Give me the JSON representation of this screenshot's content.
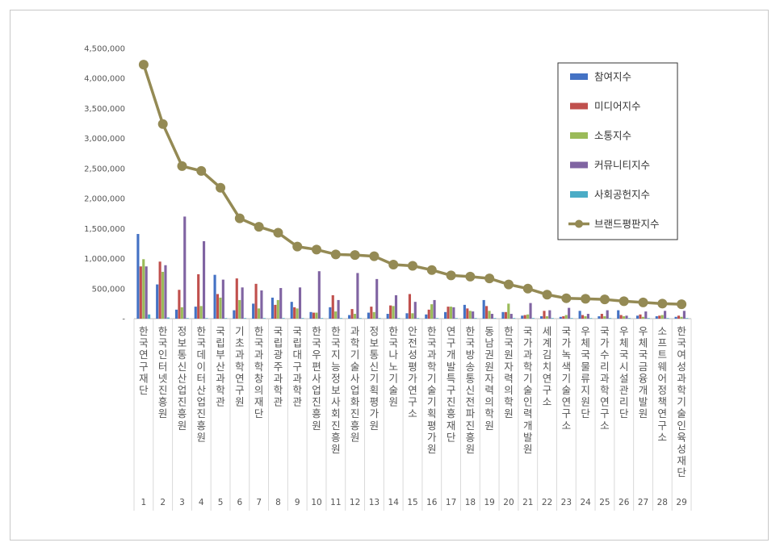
{
  "chart_data": {
    "type": "bar",
    "title": "",
    "xlabel": "",
    "ylabel": "",
    "ylim": [
      0,
      4500000
    ],
    "yticks": [
      0,
      500000,
      1000000,
      1500000,
      2000000,
      2500000,
      3000000,
      3500000,
      4000000,
      4500000
    ],
    "ytick_labels": [
      "-",
      "500,000",
      "1,000,000",
      "1,500,000",
      "2,000,000",
      "2,500,000",
      "3,000,000",
      "3,500,000",
      "4,000,000",
      "4,500,000"
    ],
    "grid": false,
    "legend_position": "top-right",
    "ranks": [
      "1",
      "2",
      "3",
      "4",
      "5",
      "6",
      "7",
      "8",
      "9",
      "10",
      "11",
      "12",
      "13",
      "14",
      "15",
      "16",
      "17",
      "18",
      "19",
      "20",
      "21",
      "22",
      "23",
      "24",
      "25",
      "26",
      "27",
      "28",
      "29"
    ],
    "categories": [
      "한국연구재단",
      "한국인터넷진흥원",
      "정보통신산업진흥원",
      "한국데이터산업진흥원",
      "국립부산과학관",
      "기초과학연구원",
      "한국과학창의재단",
      "국립광주과학관",
      "국립대구과학관",
      "한국우편사업진흥원",
      "한국지능정보사회진흥원",
      "과학기술사업화진흥원",
      "정보통신기획평가원",
      "한국나노기술원",
      "안전성평가연구소",
      "한국과학기술기획평가원",
      "연구개발특구진흥재단",
      "한국방송통신전파진흥원",
      "동남권원자력의학원",
      "한국원자력의학원",
      "국가과학기술인력개발원",
      "세계김치연구소",
      "국가녹색기술연구소",
      "우체국물류지원단",
      "국가수리과학연구소",
      "우체국시설관리단",
      "우체국금융개발원",
      "소프트웨어정책연구소",
      "한국여성과학기술인육성재단"
    ],
    "series": [
      {
        "name": "참여지수",
        "type": "bar",
        "color": "#4472C4",
        "values": [
          1410000,
          570000,
          150000,
          200000,
          730000,
          140000,
          250000,
          350000,
          280000,
          110000,
          190000,
          60000,
          100000,
          80000,
          90000,
          70000,
          110000,
          230000,
          310000,
          110000,
          50000,
          40000,
          30000,
          130000,
          40000,
          140000,
          50000,
          40000,
          30000
        ]
      },
      {
        "name": "미디어지수",
        "type": "bar",
        "color": "#C0504D",
        "values": [
          870000,
          950000,
          480000,
          740000,
          410000,
          670000,
          580000,
          230000,
          190000,
          100000,
          390000,
          160000,
          200000,
          220000,
          410000,
          150000,
          200000,
          170000,
          210000,
          110000,
          60000,
          130000,
          40000,
          60000,
          80000,
          60000,
          70000,
          50000,
          50000
        ]
      },
      {
        "name": "소통지수",
        "type": "bar",
        "color": "#9BBB59",
        "values": [
          990000,
          780000,
          190000,
          210000,
          350000,
          310000,
          170000,
          310000,
          170000,
          100000,
          120000,
          80000,
          110000,
          210000,
          90000,
          240000,
          200000,
          130000,
          130000,
          250000,
          70000,
          40000,
          60000,
          40000,
          40000,
          40000,
          30000,
          60000,
          30000
        ]
      },
      {
        "name": "커뮤니티지수",
        "type": "bar",
        "color": "#8064A2",
        "values": [
          870000,
          890000,
          1700000,
          1290000,
          650000,
          520000,
          470000,
          510000,
          520000,
          790000,
          310000,
          760000,
          660000,
          390000,
          280000,
          310000,
          190000,
          120000,
          80000,
          80000,
          260000,
          140000,
          180000,
          80000,
          140000,
          50000,
          120000,
          130000,
          130000
        ]
      },
      {
        "name": "사회공헌지수",
        "type": "bar",
        "color": "#4BACC6",
        "values": [
          70000,
          20000,
          10000,
          10000,
          10000,
          10000,
          10000,
          10000,
          10000,
          10000,
          10000,
          10000,
          10000,
          10000,
          10000,
          10000,
          10000,
          10000,
          10000,
          10000,
          10000,
          10000,
          10000,
          10000,
          10000,
          10000,
          10000,
          10000,
          10000
        ]
      },
      {
        "name": "브랜드평판지수",
        "type": "line",
        "color": "#948A54",
        "values": [
          4230000,
          3240000,
          2540000,
          2460000,
          2180000,
          1670000,
          1530000,
          1430000,
          1200000,
          1150000,
          1070000,
          1060000,
          1040000,
          900000,
          880000,
          810000,
          720000,
          700000,
          670000,
          570000,
          500000,
          400000,
          340000,
          330000,
          320000,
          290000,
          270000,
          250000,
          240000
        ]
      }
    ]
  }
}
